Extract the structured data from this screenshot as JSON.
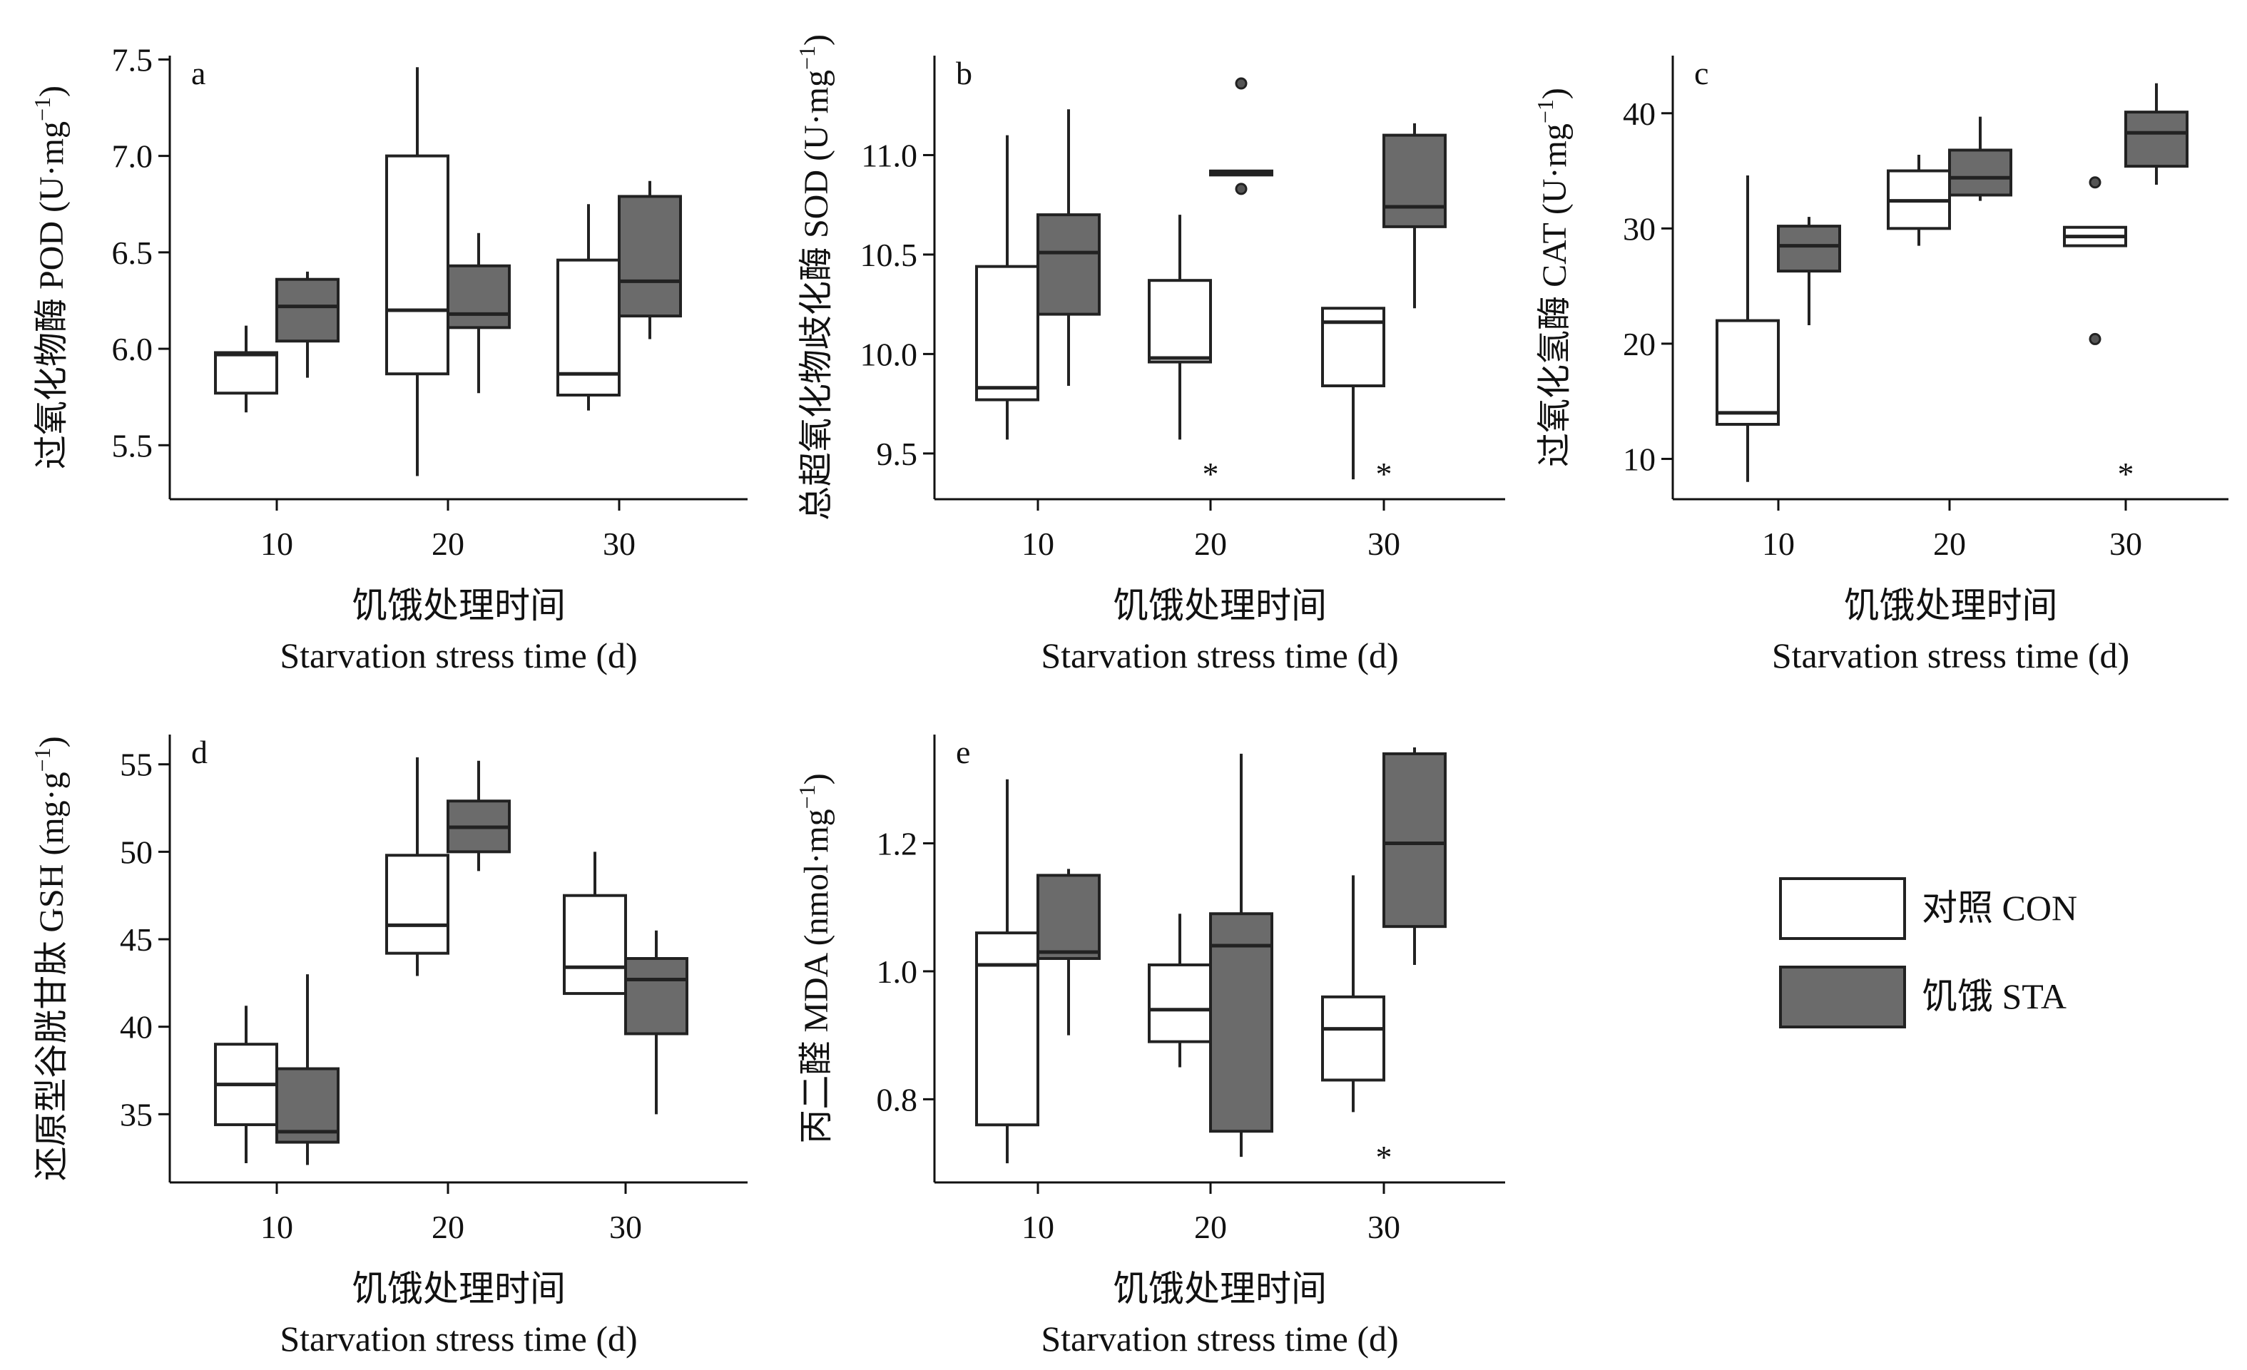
{
  "chart_data": [
    {
      "panel": "a",
      "type": "box",
      "ylabel": "过氧化物酶 POD (U·mg⁻¹)",
      "ylabel_parts": [
        "过氧化物酶 POD (U·mg",
        "−1",
        ")"
      ],
      "xlabel_cn": "饥饿处理时间",
      "xlabel_en": "Starvation stress time (d)",
      "ylim": [
        5.22,
        7.52
      ],
      "yticks": [
        5.5,
        6.0,
        6.5,
        7.0,
        7.5
      ],
      "ytick_labels": [
        "5.5",
        "6.0",
        "6.5",
        "7.0",
        "7.5"
      ],
      "categories": [
        "10",
        "20",
        "30"
      ],
      "series": [
        {
          "name": "对照 CON",
          "color": "#ffffff",
          "boxes": [
            {
              "min": 5.67,
              "q1": 5.77,
              "median": 5.97,
              "q3": 5.98,
              "max": 6.12,
              "outliers": []
            },
            {
              "min": 5.34,
              "q1": 5.87,
              "median": 6.2,
              "q3": 7.0,
              "max": 7.46,
              "outliers": []
            },
            {
              "min": 5.68,
              "q1": 5.76,
              "median": 5.87,
              "q3": 6.46,
              "max": 6.75,
              "outliers": []
            }
          ]
        },
        {
          "name": "饥饿 STA",
          "color": "#6b6b6b",
          "boxes": [
            {
              "min": 5.85,
              "q1": 6.04,
              "median": 6.22,
              "q3": 6.36,
              "max": 6.4,
              "outliers": []
            },
            {
              "min": 5.77,
              "q1": 6.11,
              "median": 6.18,
              "q3": 6.43,
              "max": 6.6,
              "outliers": []
            },
            {
              "min": 6.05,
              "q1": 6.17,
              "median": 6.35,
              "q3": 6.79,
              "max": 6.87,
              "outliers": []
            }
          ]
        }
      ],
      "annotations": []
    },
    {
      "panel": "b",
      "type": "box",
      "ylabel": "总超氧化物歧化酶 SOD (U·mg⁻¹)",
      "ylabel_parts": [
        "总超氧化物歧化酶 SOD (U·mg",
        "−1",
        ")"
      ],
      "xlabel_cn": "饥饿处理时间",
      "xlabel_en": "Starvation stress time (d)",
      "ylim": [
        9.27,
        11.5
      ],
      "yticks": [
        9.5,
        10.0,
        10.5,
        11.0
      ],
      "ytick_labels": [
        "9.5",
        "10.0",
        "10.5",
        "11.0"
      ],
      "categories": [
        "10",
        "20",
        "30"
      ],
      "series": [
        {
          "name": "对照 CON",
          "color": "#ffffff",
          "boxes": [
            {
              "min": 9.57,
              "q1": 9.77,
              "median": 9.83,
              "q3": 10.44,
              "max": 11.1,
              "outliers": []
            },
            {
              "min": 9.57,
              "q1": 9.96,
              "median": 9.98,
              "q3": 10.37,
              "max": 10.7,
              "outliers": []
            },
            {
              "min": 9.37,
              "q1": 9.84,
              "median": 10.16,
              "q3": 10.23,
              "max": 10.23,
              "outliers": []
            }
          ]
        },
        {
          "name": "饥饿 STA",
          "color": "#6b6b6b",
          "boxes": [
            {
              "min": 9.84,
              "q1": 10.2,
              "median": 10.51,
              "q3": 10.7,
              "max": 11.23,
              "outliers": []
            },
            {
              "min": 10.9,
              "q1": 10.9,
              "median": 10.91,
              "q3": 10.92,
              "max": 10.92,
              "outliers": [
                11.36,
                10.83
              ]
            },
            {
              "min": 10.23,
              "q1": 10.64,
              "median": 10.74,
              "q3": 11.1,
              "max": 11.16,
              "outliers": []
            }
          ]
        }
      ],
      "annotations": [
        {
          "category": "20",
          "text": "*"
        },
        {
          "category": "30",
          "text": "*"
        }
      ]
    },
    {
      "panel": "c",
      "type": "box",
      "ylabel": "过氧化氢酶 CAT (U·mg⁻¹)",
      "ylabel_parts": [
        "过氧化氢酶 CAT (U·mg",
        "−1",
        ")"
      ],
      "xlabel_cn": "饥饿处理时间",
      "xlabel_en": "Starvation stress time (d)",
      "ylim": [
        6.5,
        45
      ],
      "yticks": [
        10,
        20,
        30,
        40
      ],
      "ytick_labels": [
        "10",
        "20",
        "30",
        "40"
      ],
      "categories": [
        "10",
        "20",
        "30"
      ],
      "series": [
        {
          "name": "对照 CON",
          "color": "#ffffff",
          "boxes": [
            {
              "min": 8,
              "q1": 13,
              "median": 14,
              "q3": 22,
              "max": 34.6,
              "outliers": []
            },
            {
              "min": 28.5,
              "q1": 30,
              "median": 32.4,
              "q3": 35,
              "max": 36.4,
              "outliers": []
            },
            {
              "min": 28.5,
              "q1": 28.5,
              "median": 29.3,
              "q3": 30.1,
              "max": 30.1,
              "outliers": [
                34,
                20.4
              ]
            }
          ]
        },
        {
          "name": "饥饿 STA",
          "color": "#6b6b6b",
          "boxes": [
            {
              "min": 21.6,
              "q1": 26.3,
              "median": 28.5,
              "q3": 30.2,
              "max": 31,
              "outliers": []
            },
            {
              "min": 32.4,
              "q1": 32.9,
              "median": 34.4,
              "q3": 36.8,
              "max": 39.7,
              "outliers": []
            },
            {
              "min": 33.8,
              "q1": 35.4,
              "median": 38.3,
              "q3": 40.1,
              "max": 42.6,
              "outliers": []
            }
          ]
        }
      ],
      "annotations": [
        {
          "category": "30",
          "text": "*"
        }
      ]
    },
    {
      "panel": "d",
      "type": "box",
      "ylabel": "还原型谷胱甘肽 GSH (mg·g⁻¹)",
      "ylabel_parts": [
        "还原型谷胱甘肽 GSH (mg·g",
        "−1",
        ")"
      ],
      "xlabel_cn": "饥饿处理时间",
      "xlabel_en": "Starvation stress time (d)",
      "ylim": [
        31.1,
        56.7
      ],
      "yticks": [
        35,
        40,
        45,
        50,
        55
      ],
      "ytick_labels": [
        "35",
        "40",
        "45",
        "50",
        "55"
      ],
      "categories": [
        "10",
        "20",
        "30"
      ],
      "series": [
        {
          "name": "对照 CON",
          "color": "#ffffff",
          "boxes": [
            {
              "min": 32.2,
              "q1": 34.4,
              "median": 36.7,
              "q3": 39,
              "max": 41.2,
              "outliers": []
            },
            {
              "min": 42.9,
              "q1": 44.2,
              "median": 45.8,
              "q3": 49.8,
              "max": 55.4,
              "outliers": []
            },
            {
              "min": 41.9,
              "q1": 41.9,
              "median": 43.4,
              "q3": 47.5,
              "max": 50,
              "outliers": []
            }
          ]
        },
        {
          "name": "饥饿 STA",
          "color": "#6b6b6b",
          "boxes": [
            {
              "min": 32.1,
              "q1": 33.4,
              "median": 34,
              "q3": 37.6,
              "max": 43,
              "outliers": []
            },
            {
              "min": 48.9,
              "q1": 50,
              "median": 51.4,
              "q3": 52.9,
              "max": 55.2,
              "outliers": []
            },
            {
              "min": 35,
              "q1": 39.6,
              "median": 42.7,
              "q3": 43.9,
              "max": 45.5,
              "outliers": []
            }
          ]
        }
      ],
      "annotations": []
    },
    {
      "panel": "e",
      "type": "box",
      "ylabel": "丙二醛 MDA (nmol·mg⁻¹)",
      "ylabel_parts": [
        "丙二醛 MDA (nmol·mg",
        "−1",
        ")"
      ],
      "xlabel_cn": "饥饿处理时间",
      "xlabel_en": "Starvation stress time (d)",
      "ylim": [
        0.67,
        1.37
      ],
      "yticks": [
        0.8,
        1.0,
        1.2
      ],
      "ytick_labels": [
        "0.8",
        "1.0",
        "1.2"
      ],
      "categories": [
        "10",
        "20",
        "30"
      ],
      "series": [
        {
          "name": "对照 CON",
          "color": "#ffffff",
          "boxes": [
            {
              "min": 0.7,
              "q1": 0.76,
              "median": 1.01,
              "q3": 1.06,
              "max": 1.3,
              "outliers": []
            },
            {
              "min": 0.85,
              "q1": 0.89,
              "median": 0.94,
              "q3": 1.01,
              "max": 1.09,
              "outliers": []
            },
            {
              "min": 0.78,
              "q1": 0.83,
              "median": 0.91,
              "q3": 0.96,
              "max": 1.15,
              "outliers": []
            }
          ]
        },
        {
          "name": "饥饿 STA",
          "color": "#6b6b6b",
          "boxes": [
            {
              "min": 0.9,
              "q1": 1.02,
              "median": 1.03,
              "q3": 1.15,
              "max": 1.16,
              "outliers": []
            },
            {
              "min": 0.71,
              "q1": 0.75,
              "median": 1.04,
              "q3": 1.09,
              "max": 1.34,
              "outliers": []
            },
            {
              "min": 1.01,
              "q1": 1.07,
              "median": 1.2,
              "q3": 1.34,
              "max": 1.35,
              "outliers": []
            }
          ]
        }
      ],
      "annotations": [
        {
          "category": "30",
          "text": "*"
        }
      ]
    }
  ],
  "legend": {
    "entries": [
      {
        "label": "对照 CON",
        "color": "#ffffff"
      },
      {
        "label": "饥饿 STA",
        "color": "#6b6b6b"
      }
    ]
  }
}
